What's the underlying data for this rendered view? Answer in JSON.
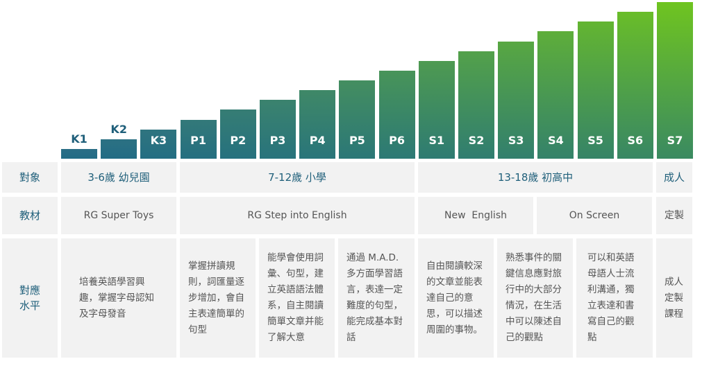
{
  "levels": [
    {
      "id": "K1",
      "value": 1
    },
    {
      "id": "K2",
      "value": 2
    },
    {
      "id": "K3",
      "value": 3
    },
    {
      "id": "P1",
      "value": 4
    },
    {
      "id": "P2",
      "value": 5
    },
    {
      "id": "P3",
      "value": 6
    },
    {
      "id": "P4",
      "value": 7
    },
    {
      "id": "P5",
      "value": 8
    },
    {
      "id": "P6",
      "value": 9
    },
    {
      "id": "S1",
      "value": 10
    },
    {
      "id": "S2",
      "value": 11
    },
    {
      "id": "S3",
      "value": 12
    },
    {
      "id": "S4",
      "value": 13
    },
    {
      "id": "S5",
      "value": 14
    },
    {
      "id": "S6",
      "value": 15
    },
    {
      "id": "S7",
      "value": 16
    }
  ],
  "colors": {
    "label_dark": "#1f5f7a",
    "bar_top_dark": "#2a6e86",
    "bar_green": "#6fc420",
    "bar_bottom": "#1d6a84",
    "cell_bg": "#f2f2f2"
  },
  "rows": {
    "target": {
      "label": "對象",
      "groups": [
        "3-6歲 幼兒園",
        "7-12歲 小學",
        "13-18歲 初高中",
        "成人"
      ]
    },
    "material": {
      "label": "教材",
      "groups": [
        "RG Super Toys",
        "RG Step into English",
        "New  English",
        "On Screen",
        "定製"
      ]
    },
    "level": {
      "label": "對應水平",
      "descriptions": [
        "培養英語學習興趣，掌握字母認知及字母發音",
        "掌握拼讀規則，詞匯量逐步增加，會自主表達簡單的句型",
        "能學會使用詞彙、句型，建立英語語法體系，自主閱讀簡單文章并能了解大意",
        "通過 M.A.D. 多方面學習語言，表達一定難度的句型，能完成基本對話",
        "自由閱讀較深的文章並能表達自己的意思，可以描述周圍的事物。",
        "熟悉事件的關鍵信息應對旅行中的大部分情況，在生活中可以陳述自己的觀點",
        "可以和英語母語人士流利溝通，獨立表達和書寫自己的觀點",
        "成人定製課程"
      ]
    }
  }
}
